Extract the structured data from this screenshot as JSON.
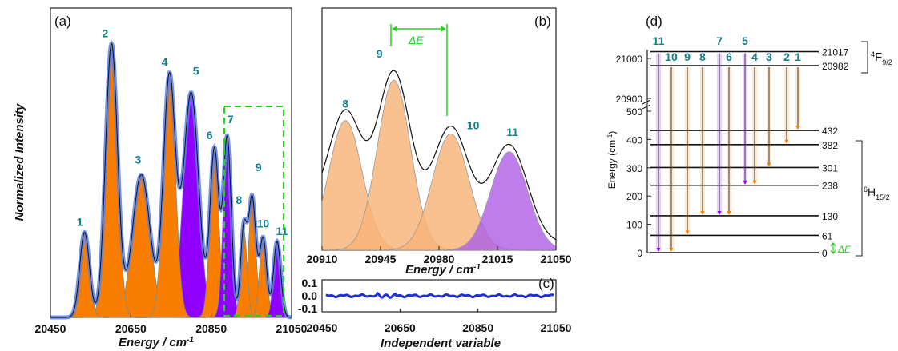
{
  "colors": {
    "orange": "#f97e00",
    "orange_light": "#f8b378",
    "purple": "#8f00ff",
    "purple_light": "#b060e6",
    "fit_blue": "#5a7fe8",
    "residual_blue": "#1f2fd8",
    "peak_label": "#127f8c",
    "highlight_green": "#23d21f"
  },
  "panels": {
    "a_label": "(a)",
    "b_label": "(b)",
    "c_label": "(c)",
    "d_label": "(d)"
  },
  "chart_data": [
    {
      "id": "a",
      "type": "area",
      "xlabel": "Energy / cm-1",
      "ylabel": "Normalized Intensity",
      "xlim": [
        20450,
        21050
      ],
      "xticks": [
        "20450",
        "20650",
        "20850",
        "21050"
      ],
      "grid": false,
      "peaks": [
        {
          "label": "1",
          "center": 20535,
          "height": 0.28,
          "width": 12,
          "color": "orange"
        },
        {
          "label": "2",
          "center": 20602,
          "height": 0.9,
          "width": 15,
          "color": "orange"
        },
        {
          "label": "3",
          "center": 20676,
          "height": 0.47,
          "width": 22,
          "color": "orange"
        },
        {
          "label": "4",
          "center": 20746,
          "height": 0.79,
          "width": 15,
          "color": "orange"
        },
        {
          "label": "5",
          "center": 20800,
          "height": 0.74,
          "width": 19,
          "color": "purple"
        },
        {
          "label": "6",
          "center": 20858,
          "height": 0.55,
          "width": 11,
          "color": "orange"
        },
        {
          "label": "7",
          "center": 20890,
          "height": 0.59,
          "width": 10,
          "color": "purple"
        },
        {
          "label": "8",
          "center": 20931,
          "height": 0.29,
          "width": 8,
          "color": "orange"
        },
        {
          "label": "9",
          "center": 20952,
          "height": 0.39,
          "width": 9,
          "color": "orange"
        },
        {
          "label": "10",
          "center": 20979,
          "height": 0.26,
          "width": 9,
          "color": "orange"
        },
        {
          "label": "11",
          "center": 21014,
          "height": 0.25,
          "width": 9,
          "color": "purple"
        }
      ]
    },
    {
      "id": "b",
      "type": "area",
      "xlabel": "Energy / cm-1",
      "xlim": [
        20910,
        21050
      ],
      "xticks": [
        "20910",
        "20945",
        "20980",
        "21015",
        "21050"
      ],
      "delta_label": "ΔE",
      "peaks": [
        {
          "label": "8",
          "center": 20924,
          "height": 0.58,
          "width": 10,
          "color": "orange_light"
        },
        {
          "label": "9",
          "center": 20953,
          "height": 0.76,
          "width": 10,
          "color": "orange_light"
        },
        {
          "label": "10",
          "center": 20987,
          "height": 0.52,
          "width": 11,
          "color": "orange_light"
        },
        {
          "label": "11",
          "center": 21022,
          "height": 0.44,
          "width": 11,
          "color": "purple_light"
        }
      ]
    },
    {
      "id": "c",
      "type": "line",
      "xlabel": "Independent variable",
      "xlim": [
        20450,
        21050
      ],
      "ylim": [
        -0.1,
        0.1
      ],
      "xticks": [
        "20450",
        "20650",
        "20850",
        "21050"
      ],
      "yticks": [
        "0.1",
        "0.0",
        "-0.1"
      ],
      "residual": "near zero with small oscillations"
    },
    {
      "id": "d",
      "type": "diagram",
      "ylabel": "Energy (cm-1)",
      "yticks": [
        "0",
        "100",
        "200",
        "300",
        "400",
        "500",
        "20900",
        "21000"
      ],
      "upper_term": "4F9/2",
      "lower_term": "6H15/2",
      "upper_levels": [
        "21017",
        "20982"
      ],
      "lower_levels": [
        "432",
        "382",
        "301",
        "238",
        "130",
        "61",
        "0"
      ],
      "delta_label": "ΔE",
      "transitions": [
        {
          "label": "11",
          "from": "21017",
          "to": "0",
          "color": "purple"
        },
        {
          "label": "10",
          "from": "20982",
          "to": "0",
          "color": "orange"
        },
        {
          "label": "9",
          "from": "20982",
          "to": "61",
          "color": "orange"
        },
        {
          "label": "8",
          "from": "20982",
          "to": "130",
          "color": "orange"
        },
        {
          "label": "7",
          "from": "21017",
          "to": "130",
          "color": "purple"
        },
        {
          "label": "6",
          "from": "20982",
          "to": "130",
          "color": "orange"
        },
        {
          "label": "5",
          "from": "21017",
          "to": "238",
          "color": "purple"
        },
        {
          "label": "4",
          "from": "20982",
          "to": "238",
          "color": "orange"
        },
        {
          "label": "3",
          "from": "20982",
          "to": "301",
          "color": "orange"
        },
        {
          "label": "2",
          "from": "20982",
          "to": "382",
          "color": "orange"
        },
        {
          "label": "1",
          "from": "20982",
          "to": "432",
          "color": "orange"
        }
      ]
    }
  ]
}
